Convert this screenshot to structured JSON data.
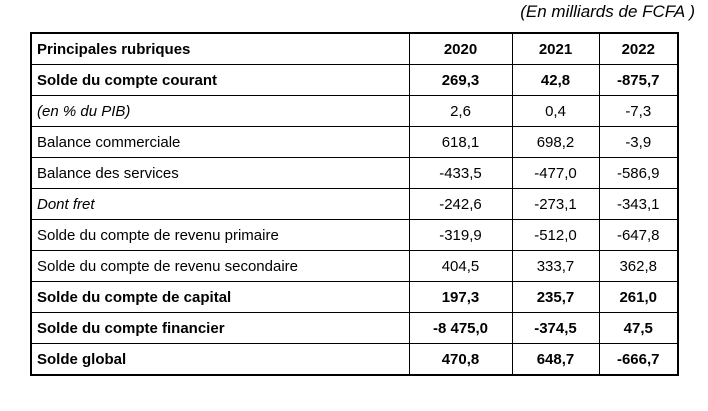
{
  "title": "(En milliards de FCFA )",
  "table": {
    "columns": [
      "Principales rubriques",
      "2020",
      "2021",
      "2022"
    ],
    "rows": [
      {
        "label": "Solde du compte courant",
        "values": [
          "269,3",
          "42,8",
          "-875,7"
        ],
        "style": "bold"
      },
      {
        "label": "(en % du PIB)",
        "values": [
          "2,6",
          "0,4",
          "-7,3"
        ],
        "style": "italic-label"
      },
      {
        "label": "Balance commerciale",
        "values": [
          "618,1",
          "698,2",
          "-3,9"
        ],
        "style": "normal"
      },
      {
        "label": "Balance des services",
        "values": [
          "-433,5",
          "-477,0",
          "-586,9"
        ],
        "style": "normal"
      },
      {
        "label": "Dont fret",
        "values": [
          "-242,6",
          "-273,1",
          "-343,1"
        ],
        "style": "italic-label"
      },
      {
        "label": "Solde du compte de revenu primaire",
        "values": [
          "-319,9",
          "-512,0",
          "-647,8"
        ],
        "style": "normal"
      },
      {
        "label": "Solde du compte de revenu secondaire",
        "values": [
          "404,5",
          "333,7",
          "362,8"
        ],
        "style": "normal"
      },
      {
        "label": "Solde du compte de capital",
        "values": [
          "197,3",
          "235,7",
          "261,0"
        ],
        "style": "bold"
      },
      {
        "label": "Solde du compte financier",
        "values": [
          "-8 475,0",
          "-374,5",
          "47,5"
        ],
        "style": "bold"
      },
      {
        "label": "Solde global",
        "values": [
          "470,8",
          "648,7",
          "-666,7"
        ],
        "style": "bold"
      }
    ]
  }
}
